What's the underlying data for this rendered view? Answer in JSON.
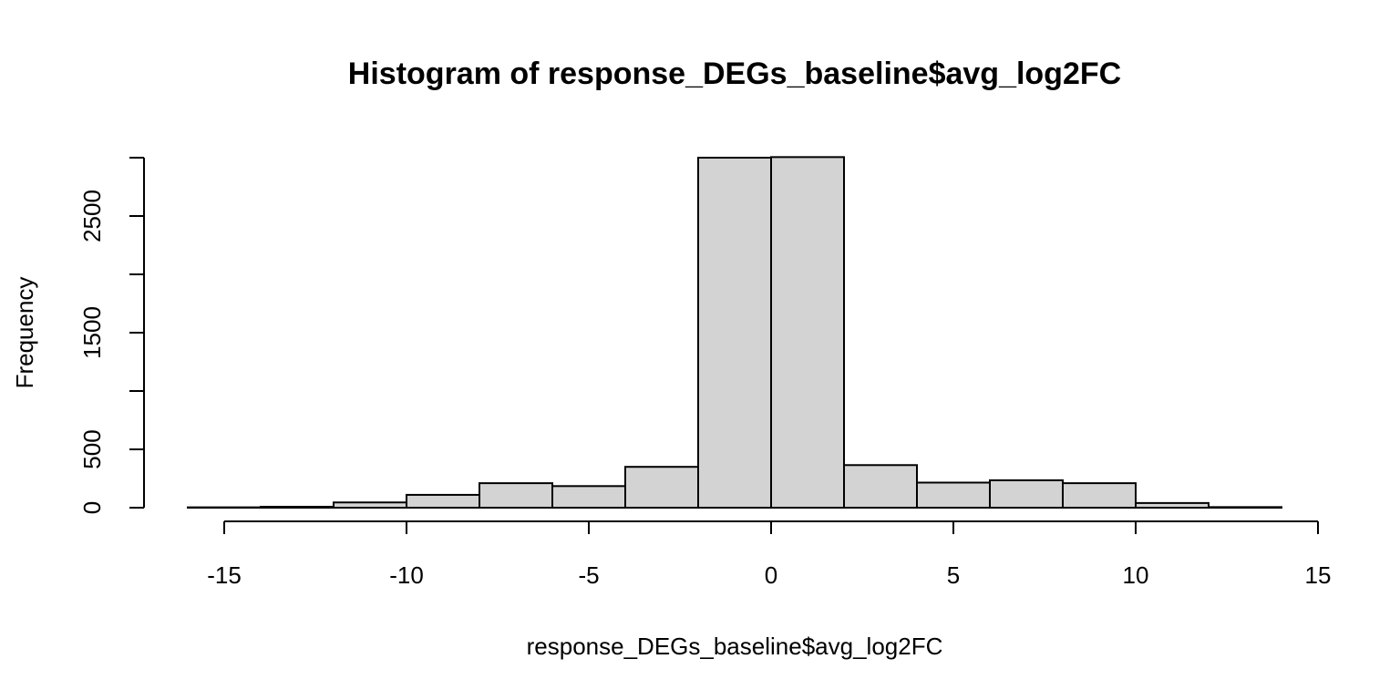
{
  "chart_data": {
    "type": "bar",
    "title": "Histogram of response_DEGs_baseline$avg_log2FC",
    "xlabel": "response_DEGs_baseline$avg_log2FC",
    "ylabel": "Frequency",
    "xlim": [
      -15,
      15
    ],
    "ylim": [
      0,
      3000
    ],
    "x_ticks": [
      -15,
      -10,
      -5,
      0,
      5,
      10,
      15
    ],
    "x_tick_labels": [
      "-15",
      "-10",
      "-5",
      "0",
      "5",
      "10",
      "15"
    ],
    "y_ticks": [
      0,
      500,
      1000,
      1500,
      2000,
      2500,
      3000
    ],
    "y_tick_labels": [
      "0",
      "500",
      "",
      "1500",
      "",
      "2500",
      ""
    ],
    "bins": [
      {
        "x0": -16,
        "x1": -14,
        "count": 3
      },
      {
        "x0": -14,
        "x1": -12,
        "count": 8
      },
      {
        "x0": -12,
        "x1": -10,
        "count": 45
      },
      {
        "x0": -10,
        "x1": -8,
        "count": 110
      },
      {
        "x0": -8,
        "x1": -6,
        "count": 210
      },
      {
        "x0": -6,
        "x1": -4,
        "count": 185
      },
      {
        "x0": -4,
        "x1": -2,
        "count": 350
      },
      {
        "x0": -2,
        "x1": 0,
        "count": 3000
      },
      {
        "x0": 0,
        "x1": 2,
        "count": 3005
      },
      {
        "x0": 2,
        "x1": 4,
        "count": 365
      },
      {
        "x0": 4,
        "x1": 6,
        "count": 215
      },
      {
        "x0": 6,
        "x1": 8,
        "count": 235
      },
      {
        "x0": 8,
        "x1": 10,
        "count": 210
      },
      {
        "x0": 10,
        "x1": 12,
        "count": 40
      },
      {
        "x0": 12,
        "x1": 14,
        "count": 5
      }
    ],
    "bar_fill": "#d3d3d3",
    "bar_stroke": "#000000",
    "grid": false,
    "legend": "none"
  }
}
